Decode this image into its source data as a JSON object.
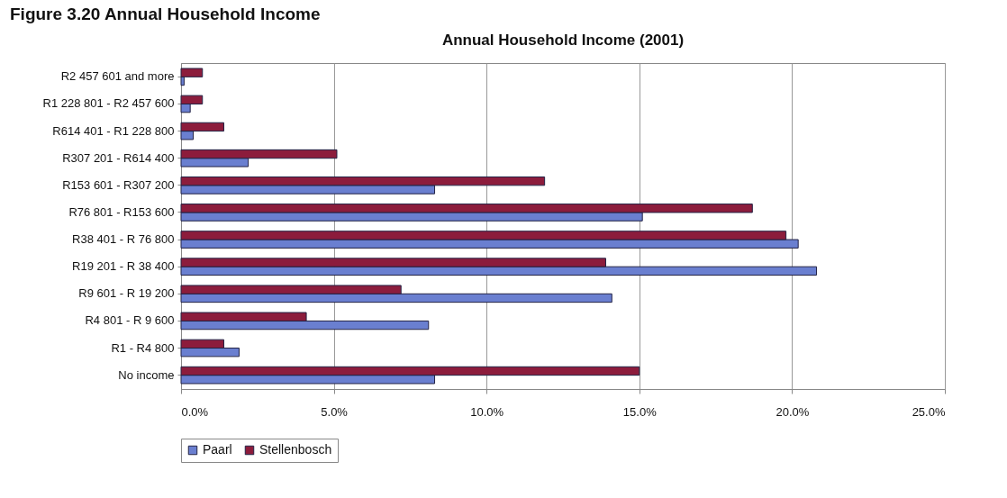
{
  "chart_data": {
    "type": "bar",
    "orientation": "horizontal",
    "title": "Annual Household Income (2001)",
    "annotations": [
      "Figure 3.20     Annual Household Income"
    ],
    "categories": [
      "R2 457 601 and more",
      "R1 228 801 - R2 457 600",
      "R614 401 - R1 228 800",
      "R307 201 - R614 400",
      "R153 601 - R307 200",
      "R76 801 - R153 600",
      "R38 401 - R 76 800",
      "R19 201 - R 38 400",
      "R9 601 - R 19 200",
      "R4 801 - R  9 600",
      "R1 - R4 800",
      "No income"
    ],
    "series": [
      {
        "name": "Paarl",
        "color": "#6a7fd0",
        "values": [
          0.1,
          0.3,
          0.4,
          2.2,
          8.3,
          15.1,
          20.2,
          20.8,
          14.1,
          8.1,
          1.9,
          8.3
        ]
      },
      {
        "name": "Stellenbosch",
        "color": "#8c1c3c",
        "values": [
          0.7,
          0.7,
          1.4,
          5.1,
          11.9,
          18.7,
          19.8,
          13.9,
          7.2,
          4.1,
          1.4,
          15.0
        ]
      }
    ],
    "xlim": [
      0,
      25
    ],
    "xticks": [
      {
        "value": 0,
        "label": "0.0%"
      },
      {
        "value": 5,
        "label": "5.0%"
      },
      {
        "value": 10,
        "label": "10.0%"
      },
      {
        "value": 15,
        "label": "15.0%"
      },
      {
        "value": 20,
        "label": "20.0%"
      },
      {
        "value": 25,
        "label": "25.0%"
      }
    ],
    "grid": "x",
    "legend": "bottom"
  }
}
